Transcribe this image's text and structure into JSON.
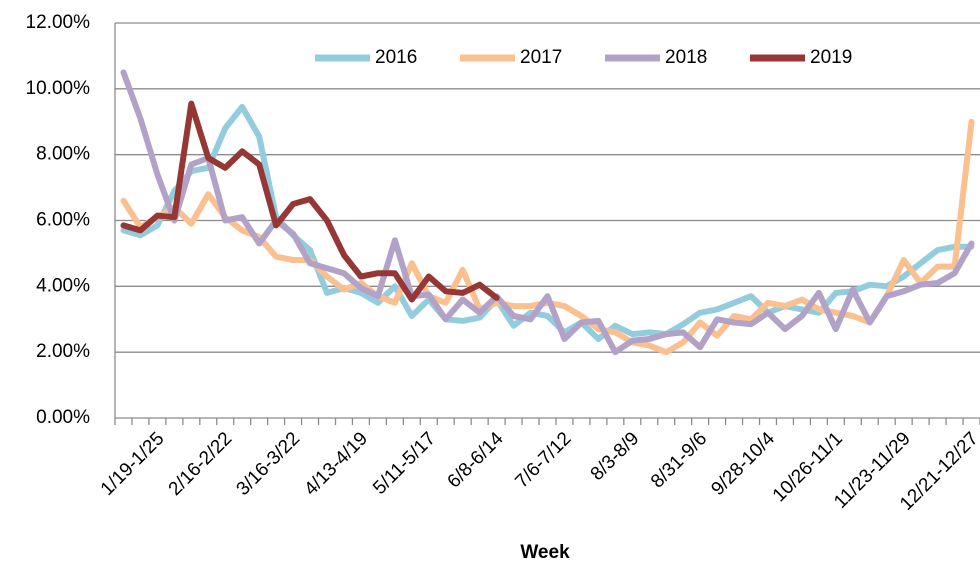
{
  "chart_data": {
    "type": "line",
    "x_label": "Week",
    "categories": [
      null,
      null,
      "1/19-1/25",
      null,
      null,
      null,
      "2/16-2/22",
      null,
      null,
      null,
      "3/16-3/22",
      null,
      null,
      null,
      "4/13-4/19",
      null,
      null,
      null,
      "5/11-5/17",
      null,
      null,
      null,
      "6/8-6/14",
      null,
      null,
      null,
      "7/6-7/12",
      null,
      null,
      null,
      "8/3-8/9",
      null,
      null,
      null,
      "8/31-9/6",
      null,
      null,
      null,
      "9/28-10/4",
      null,
      null,
      null,
      "10/26-11/1",
      null,
      null,
      null,
      "11/23-11/29",
      null,
      null,
      null,
      "12/21-12/27"
    ],
    "series": [
      {
        "name": "2016",
        "color": "#93cddd",
        "values": [
          5.7,
          5.55,
          5.85,
          6.9,
          7.5,
          7.6,
          8.8,
          9.45,
          8.55,
          6.1,
          5.55,
          5.1,
          3.8,
          3.95,
          3.8,
          3.5,
          4.0,
          3.1,
          3.6,
          3.0,
          2.95,
          3.05,
          3.6,
          2.8,
          3.2,
          3.1,
          2.6,
          2.9,
          2.4,
          2.8,
          2.55,
          2.6,
          2.55,
          2.85,
          3.2,
          3.3,
          3.5,
          3.7,
          3.2,
          3.4,
          3.3,
          3.2,
          3.8,
          3.85,
          4.05,
          4.0,
          4.3,
          4.7,
          5.1,
          5.2,
          5.2
        ]
      },
      {
        "name": "2017",
        "color": "#fac08f",
        "values": [
          6.6,
          5.8,
          6.1,
          6.4,
          5.9,
          6.8,
          6.1,
          5.7,
          5.5,
          4.9,
          4.8,
          4.8,
          4.3,
          3.9,
          4.1,
          3.7,
          3.5,
          4.7,
          3.7,
          3.5,
          4.5,
          3.3,
          3.5,
          3.4,
          3.4,
          3.5,
          3.4,
          3.1,
          2.7,
          2.6,
          2.3,
          2.2,
          2.0,
          2.3,
          2.9,
          2.5,
          3.1,
          3.0,
          3.5,
          3.4,
          3.6,
          3.3,
          3.2,
          3.1,
          2.9,
          3.7,
          4.8,
          4.1,
          4.6,
          4.6,
          9.0
        ]
      },
      {
        "name": "2018",
        "color": "#b3a2c7",
        "values": [
          10.5,
          9.1,
          7.4,
          6.0,
          7.7,
          7.9,
          6.0,
          6.1,
          5.3,
          6.0,
          5.6,
          4.7,
          4.55,
          4.4,
          3.95,
          3.7,
          5.4,
          3.7,
          3.75,
          3.0,
          3.6,
          3.2,
          3.7,
          3.1,
          3.0,
          3.7,
          2.4,
          2.9,
          2.95,
          2.0,
          2.35,
          2.4,
          2.55,
          2.6,
          2.15,
          3.0,
          2.9,
          2.85,
          3.2,
          2.7,
          3.1,
          3.8,
          2.7,
          3.9,
          2.9,
          3.7,
          3.85,
          4.05,
          4.1,
          4.4,
          5.3
        ]
      },
      {
        "name": "2019",
        "color": "#953735",
        "values": [
          5.85,
          5.7,
          6.15,
          6.1,
          9.55,
          7.9,
          7.6,
          8.1,
          7.7,
          5.85,
          6.5,
          6.65,
          6.0,
          4.95,
          4.3,
          4.4,
          4.4,
          3.6,
          4.3,
          3.85,
          3.8,
          4.05,
          3.65,
          null,
          null,
          null,
          null,
          null,
          null,
          null,
          null,
          null,
          null,
          null,
          null,
          null,
          null,
          null,
          null,
          null,
          null,
          null,
          null,
          null,
          null,
          null,
          null,
          null,
          null,
          null,
          null
        ]
      }
    ],
    "ylim": [
      0,
      12
    ],
    "yticks": [
      {
        "value": 0,
        "label": "0.00%"
      },
      {
        "value": 2,
        "label": "2.00%"
      },
      {
        "value": 4,
        "label": "4.00%"
      },
      {
        "value": 6,
        "label": "6.00%"
      },
      {
        "value": 8,
        "label": "8.00%"
      },
      {
        "value": 10,
        "label": "10.00%"
      },
      {
        "value": 12,
        "label": "12.00%"
      }
    ],
    "grid": true,
    "legend": "top"
  }
}
